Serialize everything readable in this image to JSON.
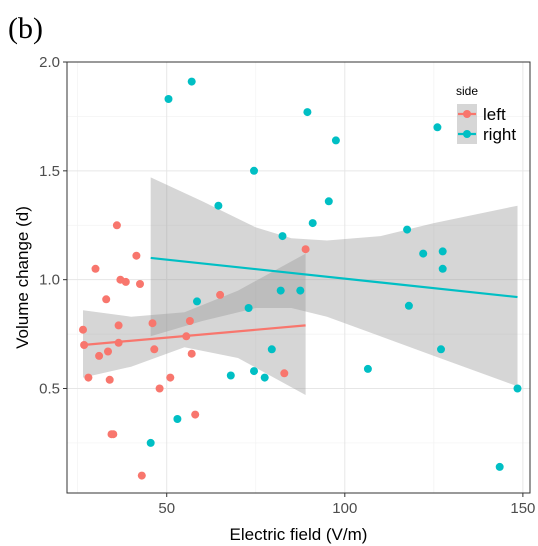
{
  "panel_tag": "(b)",
  "colors": {
    "left": "#F8766D",
    "right": "#00BFC4",
    "ribbon": "#999999"
  },
  "chart_data": {
    "type": "scatter",
    "xlabel": "Electric field (V/m)",
    "ylabel": "Volume change (d)",
    "xlim": [
      22,
      152
    ],
    "ylim": [
      0.02,
      2.0
    ],
    "xticks": [
      50,
      100,
      150
    ],
    "xtick_labels": [
      "50",
      "100",
      "150"
    ],
    "yticks": [
      0.5,
      1.0,
      1.5,
      2.0
    ],
    "ytick_labels": [
      "0.5",
      "1.0",
      "1.5",
      "2.0"
    ],
    "grid": true,
    "legend": {
      "title": "side",
      "position": "top-right"
    },
    "series": [
      {
        "name": "left",
        "color": "#F8766D",
        "points": [
          [
            26.5,
            0.77
          ],
          [
            26.8,
            0.7
          ],
          [
            28,
            0.55
          ],
          [
            30,
            1.05
          ],
          [
            31,
            0.65
          ],
          [
            33,
            0.91
          ],
          [
            33.5,
            0.67
          ],
          [
            34,
            0.54
          ],
          [
            34.5,
            0.29
          ],
          [
            35,
            0.29
          ],
          [
            36,
            1.25
          ],
          [
            36.5,
            0.79
          ],
          [
            36.5,
            0.71
          ],
          [
            37,
            1.0
          ],
          [
            38.5,
            0.99
          ],
          [
            41.5,
            1.11
          ],
          [
            42.5,
            0.98
          ],
          [
            43,
            0.1
          ],
          [
            46,
            0.8
          ],
          [
            46.5,
            0.68
          ],
          [
            48,
            0.5
          ],
          [
            51,
            0.55
          ],
          [
            55.5,
            0.74
          ],
          [
            56.5,
            0.81
          ],
          [
            57,
            0.66
          ],
          [
            58,
            0.38
          ],
          [
            65,
            0.93
          ],
          [
            83,
            0.57
          ],
          [
            89,
            1.14
          ]
        ],
        "fit": {
          "x": [
            26.5,
            89
          ],
          "y": [
            0.7,
            0.79
          ]
        },
        "ci_upper": [
          [
            26.5,
            0.86
          ],
          [
            40,
            0.83
          ],
          [
            55,
            0.85
          ],
          [
            70,
            0.95
          ],
          [
            89,
            1.12
          ]
        ],
        "ci_lower": [
          [
            26.5,
            0.55
          ],
          [
            40,
            0.6
          ],
          [
            55,
            0.69
          ],
          [
            70,
            0.64
          ],
          [
            89,
            0.47
          ]
        ]
      },
      {
        "name": "right",
        "color": "#00BFC4",
        "points": [
          [
            45.5,
            0.25
          ],
          [
            50.5,
            1.83
          ],
          [
            53,
            0.36
          ],
          [
            57,
            1.91
          ],
          [
            58.5,
            0.9
          ],
          [
            64.5,
            1.34
          ],
          [
            68,
            0.56
          ],
          [
            73,
            0.87
          ],
          [
            74.5,
            0.58
          ],
          [
            74.5,
            1.5
          ],
          [
            77.5,
            0.55
          ],
          [
            79.5,
            0.68
          ],
          [
            82,
            0.95
          ],
          [
            82.5,
            1.2
          ],
          [
            87.5,
            0.95
          ],
          [
            89.5,
            1.77
          ],
          [
            91,
            1.26
          ],
          [
            95.5,
            1.36
          ],
          [
            97.5,
            1.64
          ],
          [
            106.5,
            0.59
          ],
          [
            117.5,
            1.23
          ],
          [
            118,
            0.88
          ],
          [
            122,
            1.12
          ],
          [
            126,
            1.7
          ],
          [
            127,
            0.68
          ],
          [
            127.5,
            1.13
          ],
          [
            127.5,
            1.05
          ],
          [
            143.5,
            0.14
          ],
          [
            148.5,
            0.5
          ]
        ],
        "fit": {
          "x": [
            45.5,
            148.5
          ],
          "y": [
            1.1,
            0.92
          ]
        },
        "ci_upper": [
          [
            45.5,
            1.47
          ],
          [
            60,
            1.36
          ],
          [
            75,
            1.24
          ],
          [
            85,
            1.19
          ],
          [
            95,
            1.18
          ],
          [
            110,
            1.2
          ],
          [
            125,
            1.26
          ],
          [
            148.5,
            1.34
          ]
        ],
        "ci_lower": [
          [
            45.5,
            0.74
          ],
          [
            60,
            0.81
          ],
          [
            75,
            0.87
          ],
          [
            85,
            0.87
          ],
          [
            95,
            0.83
          ],
          [
            110,
            0.74
          ],
          [
            125,
            0.65
          ],
          [
            148.5,
            0.51
          ]
        ]
      }
    ]
  }
}
